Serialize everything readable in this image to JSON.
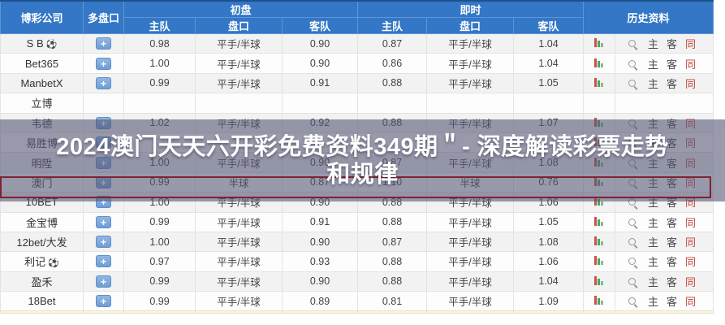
{
  "banner": {
    "text": "2024澳门天天六开彩免费资料349期＂- 深度解读彩票走势和规律",
    "line1": "2024澳门天天六开彩免费资料349期＂- 深度解读彩票走势",
    "line2": "和规律"
  },
  "table": {
    "headers": {
      "company": "博彩公司",
      "multi": "多盘口",
      "initial": "初盘",
      "live": "即时",
      "history": "历史资料",
      "home": "主队",
      "handicap": "盘口",
      "away": "客队"
    },
    "icons": {
      "plus": "+",
      "ball": "⚽",
      "search": "search-icon",
      "chart": "odds-trend-chart-icon"
    },
    "history_icons": {
      "home": "主",
      "away": "客",
      "same": "同"
    },
    "rows": [
      {
        "name": "S B",
        "ball_icon": true,
        "plus": true,
        "init_home": "0.98",
        "init_handicap": "平手/半球",
        "init_away": "0.90",
        "live_home": "0.87",
        "live_handicap": "平手/半球",
        "live_away": "1.04",
        "icons": true
      },
      {
        "name": "Bet365",
        "plus": true,
        "init_home": "1.00",
        "init_handicap": "平手/半球",
        "init_away": "0.90",
        "live_home": "0.86",
        "live_handicap": "平手/半球",
        "live_away": "1.04",
        "icons": true
      },
      {
        "name": "ManbetX",
        "plus": true,
        "init_home": "0.99",
        "init_handicap": "平手/半球",
        "init_away": "0.91",
        "live_home": "0.88",
        "live_handicap": "平手/半球",
        "live_away": "1.05",
        "icons": true
      },
      {
        "name": "立博",
        "plus": false,
        "init_home": "",
        "init_handicap": "",
        "init_away": "",
        "live_home": "",
        "live_handicap": "",
        "live_away": "",
        "icons": false
      },
      {
        "name": "韦德",
        "plus": true,
        "init_home": "1.02",
        "init_handicap": "平手/半球",
        "init_away": "0.92",
        "live_home": "0.88",
        "live_handicap": "平手/半球",
        "live_away": "1.07",
        "icons": true
      },
      {
        "name": "易胜博",
        "plus": true,
        "init_home": "",
        "init_handicap": "",
        "init_away": "",
        "live_home": "",
        "live_handicap": "",
        "live_away": "",
        "icons": true
      },
      {
        "name": "明陞",
        "plus": true,
        "init_home": "1.00",
        "init_handicap": "平手/半球",
        "init_away": "0.90",
        "live_home": "0.87",
        "live_handicap": "平手/半球",
        "live_away": "1.08",
        "icons": true
      },
      {
        "name": "澳门",
        "plus": true,
        "init_home": "0.99",
        "init_handicap": "半球",
        "init_away": "0.87",
        "live_home": "1.10",
        "live_handicap": "半球",
        "live_away": "0.76",
        "icons": true,
        "highlight": true
      },
      {
        "name": "10BET",
        "plus": true,
        "init_home": "1.00",
        "init_handicap": "平手/半球",
        "init_away": "0.90",
        "live_home": "0.88",
        "live_handicap": "平手/半球",
        "live_away": "1.06",
        "icons": true
      },
      {
        "name": "金宝博",
        "plus": true,
        "init_home": "0.99",
        "init_handicap": "平手/半球",
        "init_away": "0.91",
        "live_home": "0.88",
        "live_handicap": "平手/半球",
        "live_away": "1.05",
        "icons": true
      },
      {
        "name": "12bet/大发",
        "plus": true,
        "init_home": "1.00",
        "init_handicap": "平手/半球",
        "init_away": "0.90",
        "live_home": "0.87",
        "live_handicap": "平手/半球",
        "live_away": "1.08",
        "icons": true
      },
      {
        "name": "利记",
        "ball_icon": true,
        "plus": true,
        "init_home": "0.97",
        "init_handicap": "平手/半球",
        "init_away": "0.93",
        "live_home": "0.88",
        "live_handicap": "平手/半球",
        "live_away": "1.06",
        "icons": true
      },
      {
        "name": "盈禾",
        "plus": true,
        "init_home": "0.99",
        "init_handicap": "平手/半球",
        "init_away": "0.90",
        "live_home": "0.88",
        "live_handicap": "平手/半球",
        "live_away": "1.04",
        "icons": true
      },
      {
        "name": "18Bet",
        "plus": true,
        "init_home": "0.99",
        "init_handicap": "平手/半球",
        "init_away": "0.89",
        "live_home": "0.81",
        "live_handicap": "平手/半球",
        "live_away": "1.09",
        "icons": true
      }
    ]
  },
  "colors": {
    "header_blue": "#3377c6",
    "header_border": "#5f95d4",
    "top_edge_navy": "#1d5189",
    "highlight_border_red": "#7e2231",
    "same_link_red": "#c4473a",
    "plus_button_blue": "#6e9ed5",
    "chart_bar_red": "#cb5148",
    "chart_bar_green": "#4ca75e",
    "overlay_tint": "rgba(86,86,118,0.60)",
    "partial_row_cream": "#fbf5da"
  }
}
